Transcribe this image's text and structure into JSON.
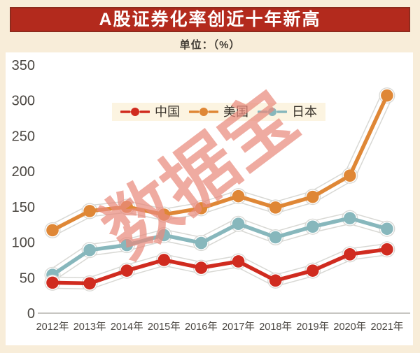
{
  "header": {
    "title": "A股证券化率创近十年新高",
    "unit_label": "单位：（%）"
  },
  "watermark": {
    "text": "数据宝"
  },
  "colors": {
    "page_background": "#f8edd9",
    "banner_background": "#b32a1d",
    "banner_border": "#8e2b1d",
    "banner_text": "#ffffff",
    "panel_background": "#ffffff",
    "legend_background": "#fcf4e1",
    "axis_line": "#c7c6c2",
    "axis_text": "#4b4742",
    "halo_gray": "#d8d8d4",
    "watermark_color": "#e98b7e"
  },
  "chart_data": {
    "type": "line",
    "title": "A股证券化率创近十年新高",
    "unit": "%",
    "categories": [
      "2012年",
      "2013年",
      "2014年",
      "2015年",
      "2016年",
      "2017年",
      "2018年",
      "2019年",
      "2020年",
      "2021年"
    ],
    "series": [
      {
        "name": "中国",
        "color": "#d02b1f",
        "values": [
          43,
          42,
          60,
          75,
          64,
          73,
          46,
          60,
          83,
          90
        ]
      },
      {
        "name": "美国",
        "color": "#df8736",
        "values": [
          117,
          144,
          150,
          139,
          148,
          165,
          149,
          164,
          194,
          307
        ]
      },
      {
        "name": "日本",
        "color": "#87b7bc",
        "values": [
          54,
          89,
          96,
          110,
          99,
          126,
          107,
          122,
          134,
          119
        ]
      }
    ],
    "ylim": [
      0,
      350
    ],
    "yticks": [
      0,
      50,
      100,
      150,
      200,
      250,
      300,
      350
    ],
    "grid": false,
    "legend_position": "top-center-inside",
    "xlabel": "",
    "ylabel": ""
  }
}
